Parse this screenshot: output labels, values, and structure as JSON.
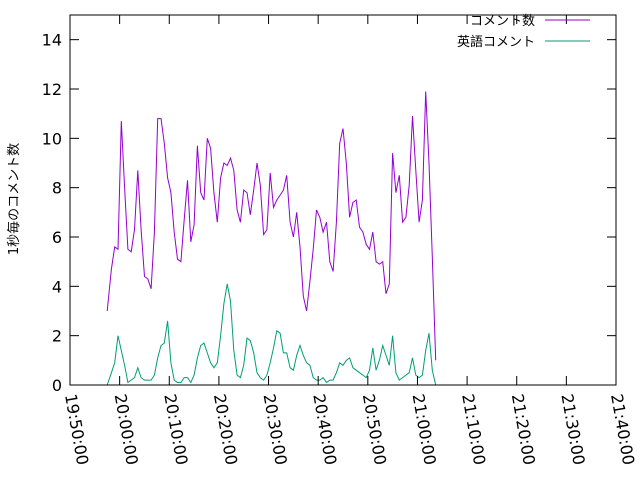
{
  "chart_data": {
    "type": "line",
    "title": "",
    "xlabel": "",
    "ylabel": "1秒毎のコメント数",
    "ylim": [
      0,
      15
    ],
    "xlim": [
      "19:50:00",
      "21:40:00"
    ],
    "x_ticks": [
      "19:50:00",
      "20:00:00",
      "20:10:00",
      "20:20:00",
      "20:30:00",
      "20:40:00",
      "20:50:00",
      "21:00:00",
      "21:10:00",
      "21:20:00",
      "21:30:00",
      "21:40:00"
    ],
    "y_ticks": [
      0,
      2,
      4,
      6,
      8,
      10,
      12,
      14
    ],
    "grid": false,
    "legend_position": "top-right",
    "series": [
      {
        "name": "コメント数",
        "color": "#9400d3",
        "points": [
          [
            "19:57:30",
            3.0
          ],
          [
            "19:58:20",
            4.7
          ],
          [
            "19:59:00",
            5.6
          ],
          [
            "19:59:40",
            5.5
          ],
          [
            "20:00:20",
            10.7
          ],
          [
            "20:01:00",
            8.0
          ],
          [
            "20:01:40",
            5.5
          ],
          [
            "20:02:20",
            5.4
          ],
          [
            "20:03:00",
            6.3
          ],
          [
            "20:03:40",
            8.7
          ],
          [
            "20:04:20",
            6.3
          ],
          [
            "20:05:00",
            4.4
          ],
          [
            "20:05:40",
            4.3
          ],
          [
            "20:06:20",
            3.9
          ],
          [
            "20:07:00",
            6.2
          ],
          [
            "20:07:40",
            10.8
          ],
          [
            "20:08:20",
            10.8
          ],
          [
            "20:09:00",
            9.8
          ],
          [
            "20:09:40",
            8.4
          ],
          [
            "20:10:20",
            7.8
          ],
          [
            "20:11:00",
            6.2
          ],
          [
            "20:11:40",
            5.1
          ],
          [
            "20:12:20",
            5.0
          ],
          [
            "20:13:00",
            6.7
          ],
          [
            "20:13:40",
            8.3
          ],
          [
            "20:14:20",
            5.8
          ],
          [
            "20:15:00",
            6.5
          ],
          [
            "20:15:40",
            9.7
          ],
          [
            "20:16:20",
            7.8
          ],
          [
            "20:17:00",
            7.5
          ],
          [
            "20:17:40",
            10.0
          ],
          [
            "20:18:20",
            9.6
          ],
          [
            "20:19:00",
            7.8
          ],
          [
            "20:19:40",
            6.6
          ],
          [
            "20:20:20",
            8.4
          ],
          [
            "20:21:00",
            9.0
          ],
          [
            "20:21:40",
            8.9
          ],
          [
            "20:22:20",
            9.2
          ],
          [
            "20:23:00",
            8.7
          ],
          [
            "20:23:40",
            7.1
          ],
          [
            "20:24:20",
            6.6
          ],
          [
            "20:25:00",
            7.9
          ],
          [
            "20:25:40",
            7.8
          ],
          [
            "20:26:20",
            6.9
          ],
          [
            "20:27:00",
            7.9
          ],
          [
            "20:27:40",
            9.0
          ],
          [
            "20:28:20",
            8.1
          ],
          [
            "20:29:00",
            6.1
          ],
          [
            "20:29:40",
            6.3
          ],
          [
            "20:30:20",
            8.6
          ],
          [
            "20:31:00",
            7.2
          ],
          [
            "20:31:40",
            7.5
          ],
          [
            "20:32:20",
            7.7
          ],
          [
            "20:33:00",
            7.9
          ],
          [
            "20:33:40",
            8.5
          ],
          [
            "20:34:20",
            6.6
          ],
          [
            "20:35:00",
            6.0
          ],
          [
            "20:35:40",
            7.0
          ],
          [
            "20:36:20",
            5.6
          ],
          [
            "20:37:00",
            3.6
          ],
          [
            "20:37:40",
            3.0
          ],
          [
            "20:38:20",
            4.2
          ],
          [
            "20:39:00",
            5.5
          ],
          [
            "20:39:40",
            7.1
          ],
          [
            "20:40:20",
            6.8
          ],
          [
            "20:41:00",
            6.2
          ],
          [
            "20:41:40",
            6.6
          ],
          [
            "20:42:20",
            5.0
          ],
          [
            "20:43:00",
            4.6
          ],
          [
            "20:43:40",
            6.6
          ],
          [
            "20:44:20",
            9.8
          ],
          [
            "20:45:00",
            10.4
          ],
          [
            "20:45:40",
            9.0
          ],
          [
            "20:46:20",
            6.8
          ],
          [
            "20:47:00",
            7.4
          ],
          [
            "20:47:40",
            7.5
          ],
          [
            "20:48:20",
            6.4
          ],
          [
            "20:49:00",
            6.2
          ],
          [
            "20:49:40",
            5.7
          ],
          [
            "20:50:20",
            5.5
          ],
          [
            "20:51:00",
            6.2
          ],
          [
            "20:51:40",
            5.0
          ],
          [
            "20:52:20",
            4.9
          ],
          [
            "20:53:00",
            5.0
          ],
          [
            "20:53:40",
            3.7
          ],
          [
            "20:54:20",
            4.1
          ],
          [
            "20:55:00",
            9.4
          ],
          [
            "20:55:40",
            7.8
          ],
          [
            "20:56:20",
            8.5
          ],
          [
            "20:57:00",
            6.6
          ],
          [
            "20:57:40",
            6.8
          ],
          [
            "20:58:20",
            8.1
          ],
          [
            "20:59:00",
            10.9
          ],
          [
            "20:59:40",
            8.7
          ],
          [
            "21:00:20",
            6.6
          ],
          [
            "21:01:00",
            7.5
          ],
          [
            "21:01:40",
            11.9
          ],
          [
            "21:02:20",
            9.0
          ],
          [
            "21:03:00",
            5.2
          ],
          [
            "21:03:40",
            1.0
          ]
        ]
      },
      {
        "name": "英語コメント",
        "color": "#009e73",
        "points": [
          [
            "19:57:30",
            0.0
          ],
          [
            "19:58:20",
            0.5
          ],
          [
            "19:59:00",
            0.9
          ],
          [
            "19:59:40",
            2.0
          ],
          [
            "20:00:20",
            1.4
          ],
          [
            "20:01:00",
            0.8
          ],
          [
            "20:01:40",
            0.1
          ],
          [
            "20:02:20",
            0.2
          ],
          [
            "20:03:00",
            0.3
          ],
          [
            "20:03:40",
            0.7
          ],
          [
            "20:04:20",
            0.3
          ],
          [
            "20:05:00",
            0.2
          ],
          [
            "20:05:40",
            0.2
          ],
          [
            "20:06:20",
            0.2
          ],
          [
            "20:07:00",
            0.4
          ],
          [
            "20:07:40",
            1.1
          ],
          [
            "20:08:20",
            1.6
          ],
          [
            "20:09:00",
            1.7
          ],
          [
            "20:09:40",
            2.6
          ],
          [
            "20:10:20",
            0.9
          ],
          [
            "20:11:00",
            0.2
          ],
          [
            "20:11:40",
            0.1
          ],
          [
            "20:12:20",
            0.1
          ],
          [
            "20:13:00",
            0.3
          ],
          [
            "20:13:40",
            0.3
          ],
          [
            "20:14:20",
            0.1
          ],
          [
            "20:15:00",
            0.4
          ],
          [
            "20:15:40",
            1.1
          ],
          [
            "20:16:20",
            1.6
          ],
          [
            "20:17:00",
            1.7
          ],
          [
            "20:17:40",
            1.3
          ],
          [
            "20:18:20",
            0.9
          ],
          [
            "20:19:00",
            0.7
          ],
          [
            "20:19:40",
            0.9
          ],
          [
            "20:20:20",
            2.0
          ],
          [
            "20:21:00",
            3.3
          ],
          [
            "20:21:40",
            4.1
          ],
          [
            "20:22:20",
            3.4
          ],
          [
            "20:23:00",
            1.4
          ],
          [
            "20:23:40",
            0.4
          ],
          [
            "20:24:20",
            0.3
          ],
          [
            "20:25:00",
            0.8
          ],
          [
            "20:25:40",
            1.9
          ],
          [
            "20:26:20",
            1.8
          ],
          [
            "20:27:00",
            1.3
          ],
          [
            "20:27:40",
            0.5
          ],
          [
            "20:28:20",
            0.3
          ],
          [
            "20:29:00",
            0.2
          ],
          [
            "20:29:40",
            0.4
          ],
          [
            "20:30:20",
            0.9
          ],
          [
            "20:31:00",
            1.5
          ],
          [
            "20:31:40",
            2.2
          ],
          [
            "20:32:20",
            2.1
          ],
          [
            "20:33:00",
            1.3
          ],
          [
            "20:33:40",
            1.3
          ],
          [
            "20:34:20",
            0.7
          ],
          [
            "20:35:00",
            0.6
          ],
          [
            "20:35:40",
            1.2
          ],
          [
            "20:36:20",
            1.6
          ],
          [
            "20:37:00",
            1.2
          ],
          [
            "20:37:40",
            0.9
          ],
          [
            "20:38:20",
            0.8
          ],
          [
            "20:39:00",
            0.3
          ],
          [
            "20:39:40",
            0.2
          ],
          [
            "20:40:20",
            0.2
          ],
          [
            "20:41:00",
            0.3
          ],
          [
            "20:41:40",
            0.1
          ],
          [
            "20:42:20",
            0.2
          ],
          [
            "20:43:00",
            0.2
          ],
          [
            "20:43:40",
            0.5
          ],
          [
            "20:44:20",
            0.9
          ],
          [
            "20:45:00",
            0.8
          ],
          [
            "20:45:40",
            1.0
          ],
          [
            "20:46:20",
            1.1
          ],
          [
            "20:47:00",
            0.7
          ],
          [
            "20:47:40",
            0.6
          ],
          [
            "20:48:20",
            0.5
          ],
          [
            "20:49:00",
            0.4
          ],
          [
            "20:49:40",
            0.3
          ],
          [
            "20:50:20",
            0.6
          ],
          [
            "20:51:00",
            1.5
          ],
          [
            "20:51:40",
            0.6
          ],
          [
            "20:52:20",
            1.0
          ],
          [
            "20:53:00",
            1.6
          ],
          [
            "20:53:40",
            1.2
          ],
          [
            "20:54:20",
            0.8
          ],
          [
            "20:55:00",
            2.0
          ],
          [
            "20:55:40",
            0.5
          ],
          [
            "20:56:20",
            0.2
          ],
          [
            "20:57:00",
            0.3
          ],
          [
            "20:57:40",
            0.4
          ],
          [
            "20:58:20",
            0.5
          ],
          [
            "20:59:00",
            1.1
          ],
          [
            "20:59:40",
            0.4
          ],
          [
            "21:00:20",
            0.3
          ],
          [
            "21:01:00",
            0.4
          ],
          [
            "21:01:40",
            1.4
          ],
          [
            "21:02:20",
            2.1
          ],
          [
            "21:03:00",
            0.6
          ],
          [
            "21:03:40",
            0.0
          ]
        ]
      }
    ]
  }
}
